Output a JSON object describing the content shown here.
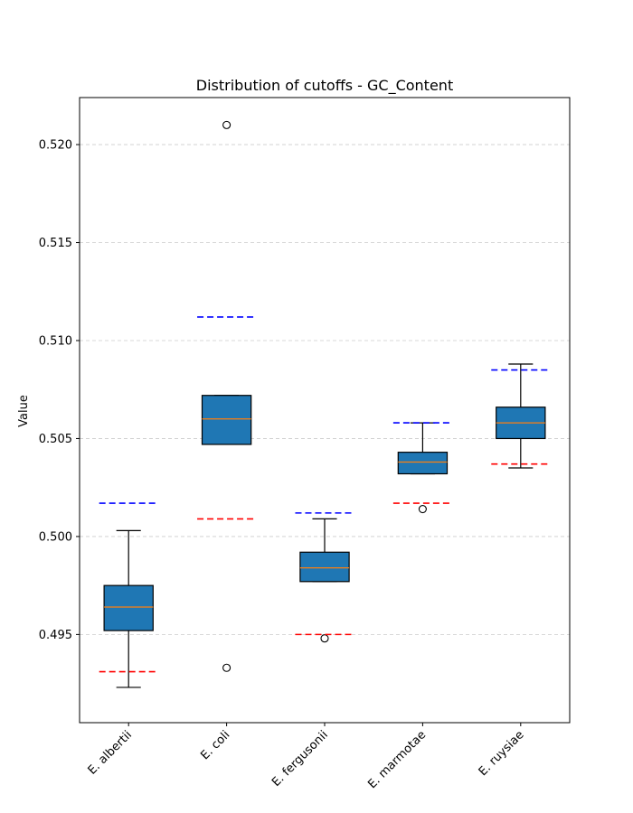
{
  "chart_data": {
    "type": "box",
    "title": "Distribution of cutoffs - GC_Content",
    "xlabel": "",
    "ylabel": "Value",
    "ylim": [
      0.4905,
      0.5224
    ],
    "yticks": [
      "0.495",
      "0.500",
      "0.505",
      "0.510",
      "0.515",
      "0.520"
    ],
    "grid": "y-dashed",
    "box_color": "#1f77b4",
    "median_color": "#ff7f0e",
    "upper_cutoff_color": "#0000ff",
    "lower_cutoff_color": "#ff0000",
    "categories": [
      "E. albertii",
      "E. coli",
      "E. fergusonii",
      "E. marmotae",
      "E. ruysiae"
    ],
    "boxes": [
      {
        "whisker_low": 0.4923,
        "q1": 0.4952,
        "median": 0.4964,
        "q3": 0.4975,
        "whisker_high": 0.5003,
        "outliers": [],
        "upper_cutoff": 0.5017,
        "lower_cutoff": 0.4931
      },
      {
        "whisker_low": 0.5047,
        "q1": 0.5047,
        "median": 0.506,
        "q3": 0.5072,
        "whisker_high": 0.5072,
        "outliers": [
          0.521,
          0.4933
        ],
        "upper_cutoff": 0.5112,
        "lower_cutoff": 0.5009
      },
      {
        "whisker_low": 0.4977,
        "q1": 0.4977,
        "median": 0.4984,
        "q3": 0.4992,
        "whisker_high": 0.5009,
        "outliers": [
          0.4948
        ],
        "upper_cutoff": 0.5012,
        "lower_cutoff": 0.495
      },
      {
        "whisker_low": 0.5032,
        "q1": 0.5032,
        "median": 0.5038,
        "q3": 0.5043,
        "whisker_high": 0.5058,
        "outliers": [
          0.5014
        ],
        "upper_cutoff": 0.5058,
        "lower_cutoff": 0.5017
      },
      {
        "whisker_low": 0.5035,
        "q1": 0.505,
        "median": 0.5058,
        "q3": 0.5066,
        "whisker_high": 0.5088,
        "outliers": [],
        "upper_cutoff": 0.5085,
        "lower_cutoff": 0.5037
      }
    ]
  }
}
